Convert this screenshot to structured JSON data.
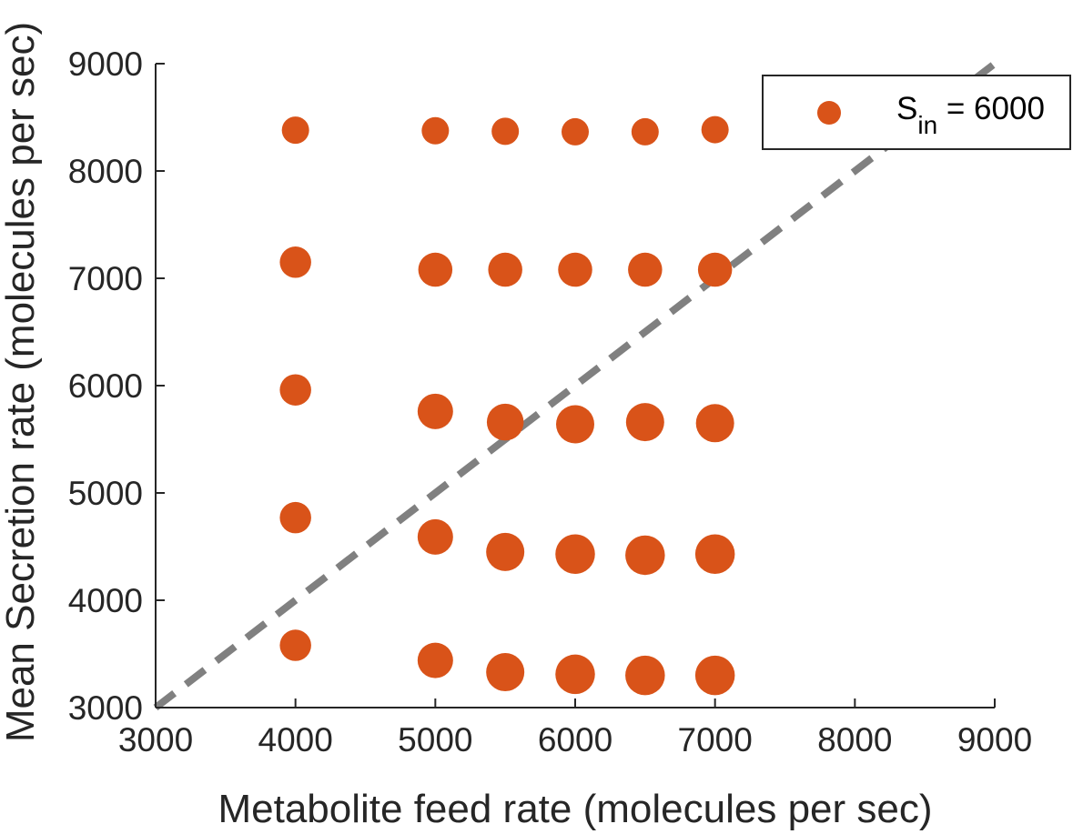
{
  "chart_data": {
    "type": "scatter",
    "xlabel": "Metabolite feed rate (molecules per sec)",
    "ylabel": "Mean Secretion rate (molecules per sec)",
    "xlim": [
      3000,
      9000
    ],
    "ylim": [
      3000,
      9000
    ],
    "xticks": [
      "3000",
      "4000",
      "5000",
      "6000",
      "7000",
      "8000",
      "9000"
    ],
    "yticks": [
      "3000",
      "4000",
      "5000",
      "6000",
      "7000",
      "8000",
      "9000"
    ],
    "grid": false,
    "legend_position": "top-right",
    "reference_line": {
      "style": "dashed",
      "color": "#808080",
      "from": [
        3000,
        3000
      ],
      "to": [
        9000,
        9000
      ]
    },
    "series": [
      {
        "legend_main": "S",
        "legend_sub": "in",
        "legend_suffix": " = 6000",
        "color": "#D95319",
        "marker": "circle",
        "points": [
          {
            "x": 4000,
            "y": 8380,
            "size": 1.0
          },
          {
            "x": 5000,
            "y": 8375,
            "size": 1.0
          },
          {
            "x": 5500,
            "y": 8370,
            "size": 1.0
          },
          {
            "x": 6000,
            "y": 8365,
            "size": 1.0
          },
          {
            "x": 6500,
            "y": 8365,
            "size": 1.0
          },
          {
            "x": 7000,
            "y": 8385,
            "size": 1.0
          },
          {
            "x": 4000,
            "y": 7150,
            "size": 1.15
          },
          {
            "x": 5000,
            "y": 7080,
            "size": 1.25
          },
          {
            "x": 5500,
            "y": 7080,
            "size": 1.25
          },
          {
            "x": 6000,
            "y": 7080,
            "size": 1.25
          },
          {
            "x": 6500,
            "y": 7080,
            "size": 1.25
          },
          {
            "x": 7000,
            "y": 7080,
            "size": 1.25
          },
          {
            "x": 4000,
            "y": 5960,
            "size": 1.15
          },
          {
            "x": 5000,
            "y": 5760,
            "size": 1.3
          },
          {
            "x": 5500,
            "y": 5660,
            "size": 1.35
          },
          {
            "x": 6000,
            "y": 5640,
            "size": 1.4
          },
          {
            "x": 6500,
            "y": 5660,
            "size": 1.4
          },
          {
            "x": 7000,
            "y": 5650,
            "size": 1.4
          },
          {
            "x": 4000,
            "y": 4770,
            "size": 1.15
          },
          {
            "x": 5000,
            "y": 4590,
            "size": 1.3
          },
          {
            "x": 5500,
            "y": 4450,
            "size": 1.4
          },
          {
            "x": 6000,
            "y": 4430,
            "size": 1.45
          },
          {
            "x": 6500,
            "y": 4420,
            "size": 1.45
          },
          {
            "x": 7000,
            "y": 4430,
            "size": 1.45
          },
          {
            "x": 4000,
            "y": 3580,
            "size": 1.15
          },
          {
            "x": 5000,
            "y": 3440,
            "size": 1.3
          },
          {
            "x": 5500,
            "y": 3330,
            "size": 1.4
          },
          {
            "x": 6000,
            "y": 3310,
            "size": 1.45
          },
          {
            "x": 6500,
            "y": 3300,
            "size": 1.45
          },
          {
            "x": 7000,
            "y": 3300,
            "size": 1.45
          }
        ]
      }
    ]
  }
}
